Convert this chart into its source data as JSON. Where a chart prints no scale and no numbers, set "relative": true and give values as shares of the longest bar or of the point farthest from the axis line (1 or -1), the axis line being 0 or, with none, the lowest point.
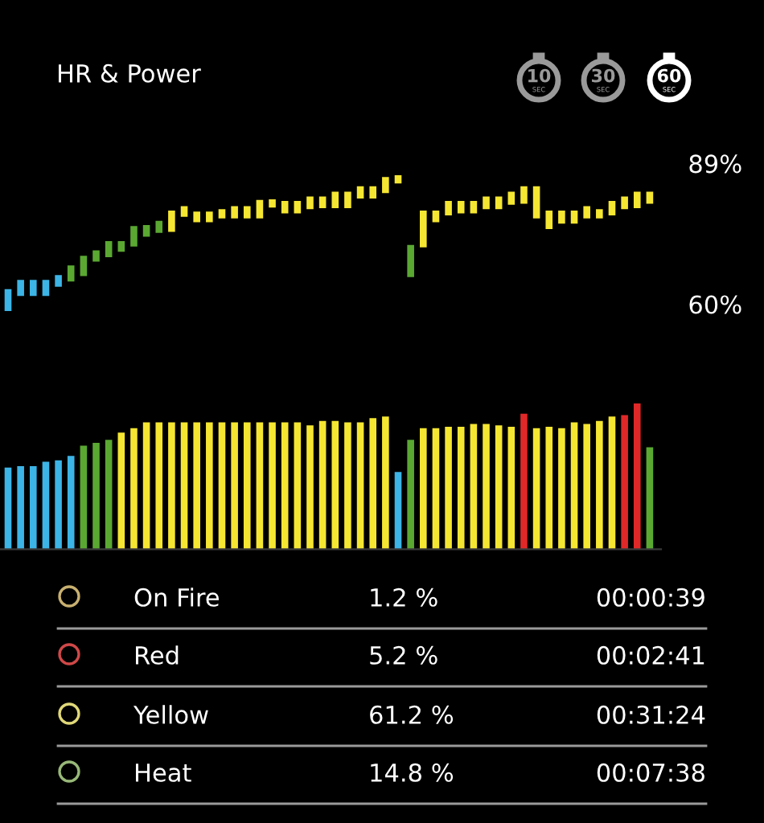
{
  "chart_data": [
    {
      "type": "bar",
      "title": "HR & Power",
      "categories": [
        null,
        null,
        null,
        null,
        null,
        null,
        null,
        null,
        null,
        null,
        null,
        null,
        null,
        null,
        null,
        null,
        null,
        null,
        null,
        null,
        null,
        null,
        null,
        null,
        null,
        null,
        null,
        null,
        null,
        null,
        null,
        null,
        null,
        null,
        null,
        null,
        null,
        null,
        null,
        null,
        null,
        null,
        null,
        null,
        null,
        null,
        null,
        null,
        null,
        null,
        null,
        null
      ],
      "base": [
        58.6,
        61.7,
        61.7,
        61.7,
        63.6,
        64.7,
        65.8,
        68.8,
        69.7,
        70.8,
        71.9,
        73.9,
        74.7,
        74.9,
        78.0,
        76.9,
        76.9,
        77.7,
        77.7,
        77.7,
        77.7,
        79.9,
        78.7,
        78.7,
        79.6,
        79.8,
        79.8,
        79.8,
        81.8,
        81.8,
        82.9,
        84.9,
        65.6,
        71.7,
        76.9,
        78.3,
        78.7,
        78.7,
        79.6,
        79.6,
        80.5,
        80.7,
        77.7,
        75.5,
        76.6,
        76.6,
        77.7,
        77.7,
        78.3,
        79.6,
        79.8,
        80.7
      ],
      "values": [
        4.5,
        3.3,
        3.3,
        3.3,
        2.4,
        3.3,
        4.2,
        2.3,
        3.3,
        2.2,
        4.2,
        2.4,
        2.5,
        4.4,
        2.2,
        2.2,
        2.2,
        1.9,
        2.5,
        2.5,
        3.8,
        1.7,
        2.6,
        2.6,
        2.6,
        2.4,
        3.4,
        3.4,
        2.5,
        2.5,
        3.3,
        1.7,
        6.6,
        7.6,
        2.4,
        3.0,
        2.6,
        2.6,
        2.6,
        2.6,
        2.7,
        3.6,
        6.6,
        3.8,
        2.7,
        2.7,
        2.5,
        1.9,
        3.0,
        2.6,
        3.4,
        2.5
      ],
      "colors": [
        "#3cb4e6",
        "#3cb4e6",
        "#3cb4e6",
        "#3cb4e6",
        "#3cb4e6",
        "#5aa832",
        "#5aa832",
        "#5aa832",
        "#5aa832",
        "#5aa832",
        "#5aa832",
        "#5aa832",
        "#5aa832",
        "#f5e632",
        "#f5e632",
        "#f5e632",
        "#f5e632",
        "#f5e632",
        "#f5e632",
        "#f5e632",
        "#f5e632",
        "#f5e632",
        "#f5e632",
        "#f5e632",
        "#f5e632",
        "#f5e632",
        "#f5e632",
        "#f5e632",
        "#f5e632",
        "#f5e632",
        "#f5e632",
        "#f5e632",
        "#5aa832",
        "#f5e632",
        "#f5e632",
        "#f5e632",
        "#f5e632",
        "#f5e632",
        "#f5e632",
        "#f5e632",
        "#f5e632",
        "#f5e632",
        "#f5e632",
        "#f5e632",
        "#f5e632",
        "#f5e632",
        "#f5e632",
        "#f5e632",
        "#f5e632",
        "#f5e632",
        "#f5e632",
        "#f5e632"
      ],
      "ylim": [
        58,
        89
      ],
      "yticks": [
        {
          "value": 60,
          "label": "60%"
        },
        {
          "value": 89,
          "label": "89%"
        }
      ],
      "tick_labels": "y",
      "annotations": [
        "10",
        "SEC",
        "30",
        "SEC",
        "60",
        "SEC"
      ]
    },
    {
      "type": "bar",
      "relative": true,
      "categories": [
        null,
        null,
        null,
        null,
        null,
        null,
        null,
        null,
        null,
        null,
        null,
        null,
        null,
        null,
        null,
        null,
        null,
        null,
        null,
        null,
        null,
        null,
        null,
        null,
        null,
        null,
        null,
        null,
        null,
        null,
        null,
        null,
        null,
        null,
        null,
        null,
        null,
        null,
        null,
        null,
        null,
        null,
        null,
        null,
        null,
        null,
        null,
        null,
        null,
        null,
        null,
        null
      ],
      "values": [
        0.56,
        0.57,
        0.57,
        0.6,
        0.61,
        0.64,
        0.71,
        0.73,
        0.75,
        0.8,
        0.83,
        0.87,
        0.87,
        0.87,
        0.87,
        0.87,
        0.87,
        0.87,
        0.87,
        0.87,
        0.87,
        0.87,
        0.87,
        0.87,
        0.85,
        0.88,
        0.88,
        0.87,
        0.87,
        0.9,
        0.91,
        0.53,
        0.75,
        0.83,
        0.83,
        0.84,
        0.84,
        0.86,
        0.86,
        0.85,
        0.84,
        0.93,
        0.83,
        0.84,
        0.83,
        0.87,
        0.86,
        0.88,
        0.91,
        0.92,
        1.0,
        0.7
      ],
      "colors": [
        "#3cb4e6",
        "#3cb4e6",
        "#3cb4e6",
        "#3cb4e6",
        "#3cb4e6",
        "#3cb4e6",
        "#5aa832",
        "#5aa832",
        "#5aa832",
        "#f5e632",
        "#f5e632",
        "#f5e632",
        "#f5e632",
        "#f5e632",
        "#f5e632",
        "#f5e632",
        "#f5e632",
        "#f5e632",
        "#f5e632",
        "#f5e632",
        "#f5e632",
        "#f5e632",
        "#f5e632",
        "#f5e632",
        "#f5e632",
        "#f5e632",
        "#f5e632",
        "#f5e632",
        "#f5e632",
        "#f5e632",
        "#f5e632",
        "#3cb4e6",
        "#5aa832",
        "#f5e632",
        "#f5e632",
        "#f5e632",
        "#f5e632",
        "#f5e632",
        "#f5e632",
        "#f5e632",
        "#f5e632",
        "#e02828",
        "#f5e632",
        "#f5e632",
        "#f5e632",
        "#f5e632",
        "#f5e632",
        "#f5e632",
        "#f5e632",
        "#e02828",
        "#e02828",
        "#5aa832"
      ],
      "tick_labels": false
    },
    {
      "type": "other",
      "colors": [
        "#c8b070",
        "#d04848",
        "#e0d878",
        "#98b878"
      ],
      "annotations": [
        "On Fire",
        "1.2 %",
        "00:00:39",
        "Red",
        "5.2 %",
        "00:02:41",
        "Yellow",
        "61.2 %",
        "00:31:24",
        "Heat",
        "14.8 %",
        "00:07:38"
      ]
    }
  ]
}
